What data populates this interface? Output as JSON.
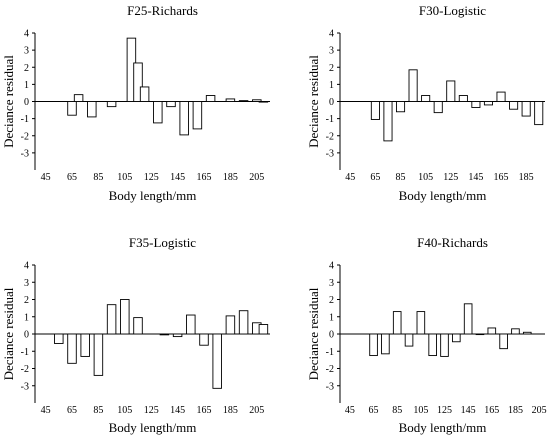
{
  "chart_data": [
    {
      "type": "bar",
      "title": "F25-Richards",
      "xlabel": "Body length/mm",
      "ylabel": "Deciance residual",
      "ylim": [
        -4,
        4
      ],
      "yticks": [
        "-3",
        "-2",
        "-1",
        "0",
        "1",
        "2",
        "3",
        "4"
      ],
      "xticks": [
        "45",
        "65",
        "85",
        "105",
        "125",
        "145",
        "165",
        "185",
        "205"
      ],
      "xlim": [
        40,
        215
      ],
      "bar_width": 6.5,
      "x": [
        65,
        70,
        80,
        95,
        110,
        115,
        120,
        130,
        140,
        150,
        160,
        170,
        185,
        195,
        205,
        210
      ],
      "values": [
        -0.8,
        0.4,
        -0.9,
        -0.3,
        3.7,
        2.25,
        0.85,
        -1.25,
        -0.3,
        -1.95,
        -1.6,
        0.35,
        0.15,
        0.05,
        0.1,
        0.0
      ]
    },
    {
      "type": "bar",
      "title": "F30-Logistic",
      "xlabel": "Body length/mm",
      "ylabel": "Deciance residual",
      "ylim": [
        -4,
        4
      ],
      "yticks": [
        "-3",
        "-2",
        "-1",
        "0",
        "1",
        "2",
        "3",
        "4"
      ],
      "xticks": [
        "45",
        "65",
        "85",
        "105",
        "125",
        "145",
        "165",
        "185"
      ],
      "xlim": [
        40,
        200
      ],
      "bar_width": 6.5,
      "x": [
        65,
        75,
        85,
        95,
        105,
        115,
        125,
        135,
        145,
        155,
        165,
        175,
        185,
        195
      ],
      "values": [
        -1.05,
        -2.3,
        -0.6,
        1.85,
        0.35,
        -0.65,
        1.2,
        0.35,
        -0.35,
        -0.2,
        0.55,
        -0.45,
        -0.85,
        -1.35
      ]
    },
    {
      "type": "bar",
      "title": "F35-Logistic",
      "xlabel": "Body length/mm",
      "ylabel": "Deciance residual",
      "ylim": [
        -4,
        4
      ],
      "yticks": [
        "-3",
        "-2",
        "-1",
        "0",
        "1",
        "2",
        "3",
        "4"
      ],
      "xticks": [
        "45",
        "65",
        "85",
        "105",
        "125",
        "145",
        "165",
        "185",
        "205"
      ],
      "xlim": [
        40,
        215
      ],
      "bar_width": 6.5,
      "x": [
        55,
        65,
        75,
        85,
        95,
        105,
        115,
        135,
        145,
        155,
        165,
        175,
        185,
        195,
        205,
        210
      ],
      "values": [
        -0.55,
        -1.7,
        -1.3,
        -2.4,
        1.7,
        2.0,
        0.95,
        -0.05,
        -0.15,
        1.1,
        -0.65,
        -3.15,
        1.05,
        1.35,
        0.65,
        0.55
      ]
    },
    {
      "type": "bar",
      "title": "F40-Richards",
      "xlabel": "Body length/mm",
      "ylabel": "Deciance residual",
      "ylim": [
        -4,
        4
      ],
      "yticks": [
        "-3",
        "-2",
        "-1",
        "0",
        "1",
        "2",
        "3",
        "4"
      ],
      "xticks": [
        "45",
        "65",
        "85",
        "105",
        "125",
        "145",
        "165",
        "185",
        "205"
      ],
      "xlim": [
        40,
        210
      ],
      "bar_width": 6.5,
      "x": [
        65,
        75,
        85,
        95,
        105,
        115,
        125,
        135,
        145,
        155,
        165,
        175,
        185,
        195
      ],
      "values": [
        -1.25,
        -1.15,
        1.3,
        -0.7,
        1.3,
        -1.25,
        -1.3,
        -0.45,
        1.75,
        0.0,
        0.35,
        -0.85,
        0.3,
        0.1
      ]
    }
  ]
}
